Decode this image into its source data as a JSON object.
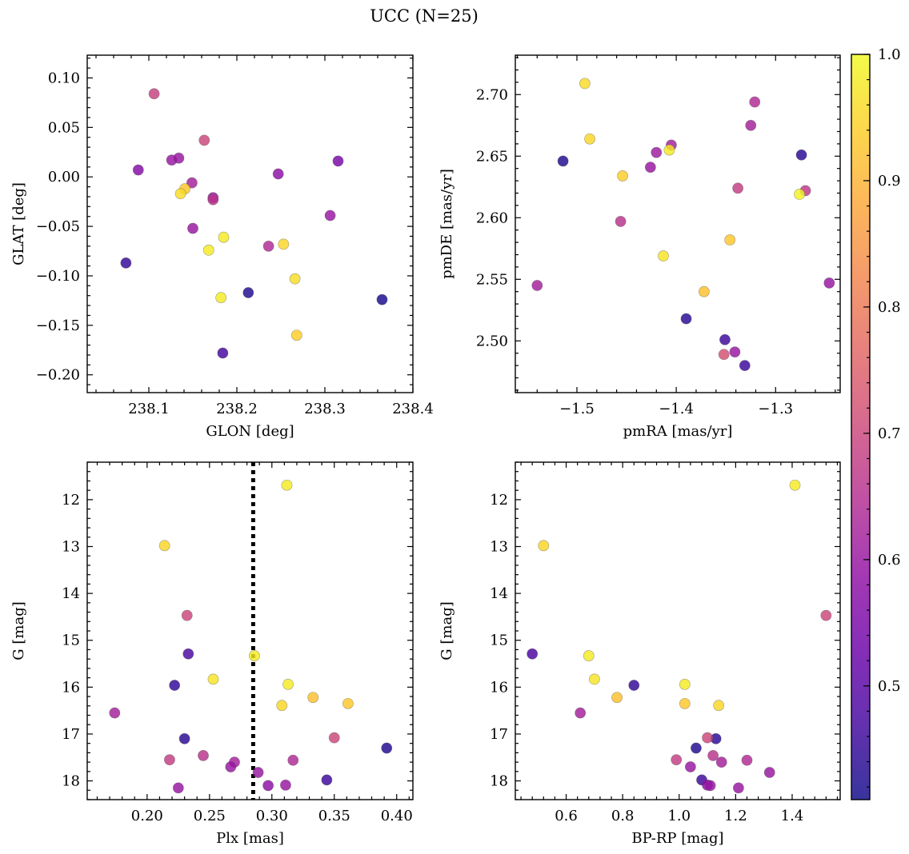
{
  "figure": {
    "title": "UCC (N=25)"
  },
  "colorbar": {
    "min": 0.41,
    "max": 1.0,
    "colormap": "plasma",
    "ticks": [
      0.5,
      0.6,
      0.7,
      0.8,
      0.9,
      1.0
    ],
    "tick_labels": [
      "0.5",
      "0.6",
      "0.7",
      "0.8",
      "0.9",
      "1.0"
    ]
  },
  "chart_data": [
    {
      "type": "scatter",
      "id": "glon-glat",
      "xlabel": "GLON [deg]",
      "ylabel": "GLAT [deg]",
      "xlim": [
        238.03,
        238.4
      ],
      "ylim": [
        -0.218,
        0.123
      ],
      "y_inverted": false,
      "xticks": [
        238.1,
        238.2,
        238.3,
        238.4
      ],
      "xtick_labels": [
        "238.1",
        "238.2",
        "238.3",
        "238.4"
      ],
      "yticks": [
        -0.2,
        -0.15,
        -0.1,
        -0.05,
        0.0,
        0.05,
        0.1
      ],
      "ytick_labels": [
        "−0.20",
        "−0.15",
        "−0.10",
        "−0.05",
        "0.00",
        "0.05",
        "0.10"
      ],
      "x": [
        238.106,
        238.163,
        238.088,
        238.126,
        238.134,
        238.149,
        238.141,
        238.136,
        238.173,
        238.173,
        238.247,
        238.315,
        238.306,
        238.15,
        238.185,
        238.236,
        238.253,
        238.168,
        238.074,
        238.213,
        238.266,
        238.182,
        238.365,
        238.268,
        238.184
      ],
      "y": [
        0.084,
        0.037,
        0.007,
        0.017,
        0.019,
        -0.006,
        -0.012,
        -0.017,
        -0.021,
        -0.023,
        0.003,
        0.016,
        -0.039,
        -0.052,
        -0.061,
        -0.07,
        -0.068,
        -0.074,
        -0.087,
        -0.117,
        -0.103,
        -0.122,
        -0.124,
        -0.16,
        -0.178
      ]
    },
    {
      "type": "scatter",
      "id": "pmra-pmde",
      "xlabel": "pmRA [mas/yr]",
      "ylabel": "pmDE [mas/yr]",
      "xlim": [
        -1.562,
        -1.235
      ],
      "ylim": [
        2.458,
        2.732
      ],
      "y_inverted": false,
      "xticks": [
        -1.5,
        -1.4,
        -1.3
      ],
      "xtick_labels": [
        "−1.5",
        "−1.4",
        "−1.3"
      ],
      "yticks": [
        2.5,
        2.55,
        2.6,
        2.65,
        2.7
      ],
      "ytick_labels": [
        "2.50",
        "2.55",
        "2.60",
        "2.65",
        "2.70"
      ],
      "x": [
        -1.492,
        -1.321,
        -1.325,
        -1.487,
        -1.514,
        -1.405,
        -1.42,
        -1.407,
        -1.426,
        -1.454,
        -1.274,
        -1.338,
        -1.27,
        -1.276,
        -1.456,
        -1.346,
        -1.413,
        -1.54,
        -1.246,
        -1.372,
        -1.39,
        -1.351,
        -1.352,
        -1.341,
        -1.331
      ],
      "y": [
        2.709,
        2.694,
        2.675,
        2.664,
        2.646,
        2.659,
        2.653,
        2.655,
        2.641,
        2.634,
        2.651,
        2.624,
        2.622,
        2.619,
        2.597,
        2.582,
        2.569,
        2.545,
        2.547,
        2.54,
        2.518,
        2.501,
        2.489,
        2.491,
        2.48
      ]
    },
    {
      "type": "scatter",
      "id": "plx-g",
      "xlabel": "Plx [mas]",
      "ylabel": "G [mag]",
      "xlim": [
        0.152,
        0.413
      ],
      "ylim": [
        11.2,
        18.4
      ],
      "y_inverted": true,
      "reference_line_x": 0.285,
      "xticks": [
        0.2,
        0.25,
        0.3,
        0.35,
        0.4
      ],
      "xtick_labels": [
        "0.20",
        "0.25",
        "0.30",
        "0.35",
        "0.40"
      ],
      "yticks": [
        12,
        13,
        14,
        15,
        16,
        17,
        18
      ],
      "ytick_labels": [
        "12",
        "13",
        "14",
        "15",
        "16",
        "17",
        "18"
      ],
      "x": [
        0.312,
        0.214,
        0.232,
        0.286,
        0.233,
        0.222,
        0.253,
        0.313,
        0.333,
        0.361,
        0.308,
        0.174,
        0.23,
        0.35,
        0.392,
        0.218,
        0.245,
        0.27,
        0.267,
        0.317,
        0.289,
        0.225,
        0.297,
        0.311,
        0.344
      ],
      "y": [
        11.69,
        12.98,
        14.47,
        15.33,
        15.29,
        15.96,
        15.83,
        15.94,
        16.22,
        16.35,
        16.39,
        16.55,
        17.1,
        17.08,
        17.3,
        17.55,
        17.46,
        17.6,
        17.7,
        17.56,
        17.82,
        18.15,
        18.1,
        18.09,
        17.98
      ]
    },
    {
      "type": "scatter",
      "id": "bprp-g",
      "xlabel": "BP-RP [mag]",
      "ylabel": "G [mag]",
      "xlim": [
        0.42,
        1.57
      ],
      "ylim": [
        11.2,
        18.4
      ],
      "y_inverted": true,
      "xticks": [
        0.6,
        0.8,
        1.0,
        1.2,
        1.4
      ],
      "xtick_labels": [
        "0.6",
        "0.8",
        "1.0",
        "1.2",
        "1.4"
      ],
      "yticks": [
        12,
        13,
        14,
        15,
        16,
        17,
        18
      ],
      "ytick_labels": [
        "12",
        "13",
        "14",
        "15",
        "16",
        "17",
        "18"
      ],
      "x": [
        1.41,
        0.52,
        1.52,
        0.68,
        0.48,
        0.84,
        0.7,
        1.02,
        0.78,
        1.02,
        1.14,
        0.65,
        1.13,
        1.1,
        1.06,
        0.99,
        1.12,
        1.15,
        1.04,
        1.24,
        1.32,
        1.21,
        1.08,
        1.1,
        1.11
      ],
      "y": [
        11.69,
        12.98,
        14.47,
        15.33,
        15.29,
        15.96,
        15.83,
        15.94,
        16.22,
        16.35,
        16.39,
        16.55,
        17.1,
        17.08,
        17.3,
        17.55,
        17.46,
        17.6,
        17.7,
        17.56,
        17.82,
        18.15,
        17.98,
        18.09,
        18.1
      ]
    }
  ],
  "probabilities_panel1": [
    0.69,
    0.7,
    0.57,
    0.6,
    0.6,
    0.62,
    0.93,
    0.96,
    0.6,
    0.66,
    0.58,
    0.55,
    0.6,
    0.6,
    0.98,
    0.64,
    0.95,
    0.98,
    0.45,
    0.43,
    0.96,
    0.98,
    0.42,
    0.94,
    0.47
  ],
  "probabilities_panel2": [
    0.96,
    0.64,
    0.62,
    0.95,
    0.43,
    0.62,
    0.61,
    0.98,
    0.6,
    0.94,
    0.44,
    0.68,
    0.67,
    0.99,
    0.66,
    0.93,
    0.97,
    0.62,
    0.6,
    0.92,
    0.44,
    0.46,
    0.72,
    0.6,
    0.46
  ],
  "probabilities_panel3": [
    0.98,
    0.95,
    0.7,
    0.98,
    0.48,
    0.45,
    0.97,
    0.98,
    0.92,
    0.93,
    0.95,
    0.62,
    0.44,
    0.7,
    0.43,
    0.68,
    0.66,
    0.62,
    0.6,
    0.64,
    0.6,
    0.6,
    0.58,
    0.6,
    0.46
  ],
  "probabilities_panel4": [
    0.98,
    0.95,
    0.7,
    0.98,
    0.48,
    0.45,
    0.97,
    0.98,
    0.92,
    0.93,
    0.95,
    0.62,
    0.44,
    0.7,
    0.43,
    0.68,
    0.66,
    0.62,
    0.6,
    0.64,
    0.6,
    0.6,
    0.46,
    0.58,
    0.6
  ]
}
